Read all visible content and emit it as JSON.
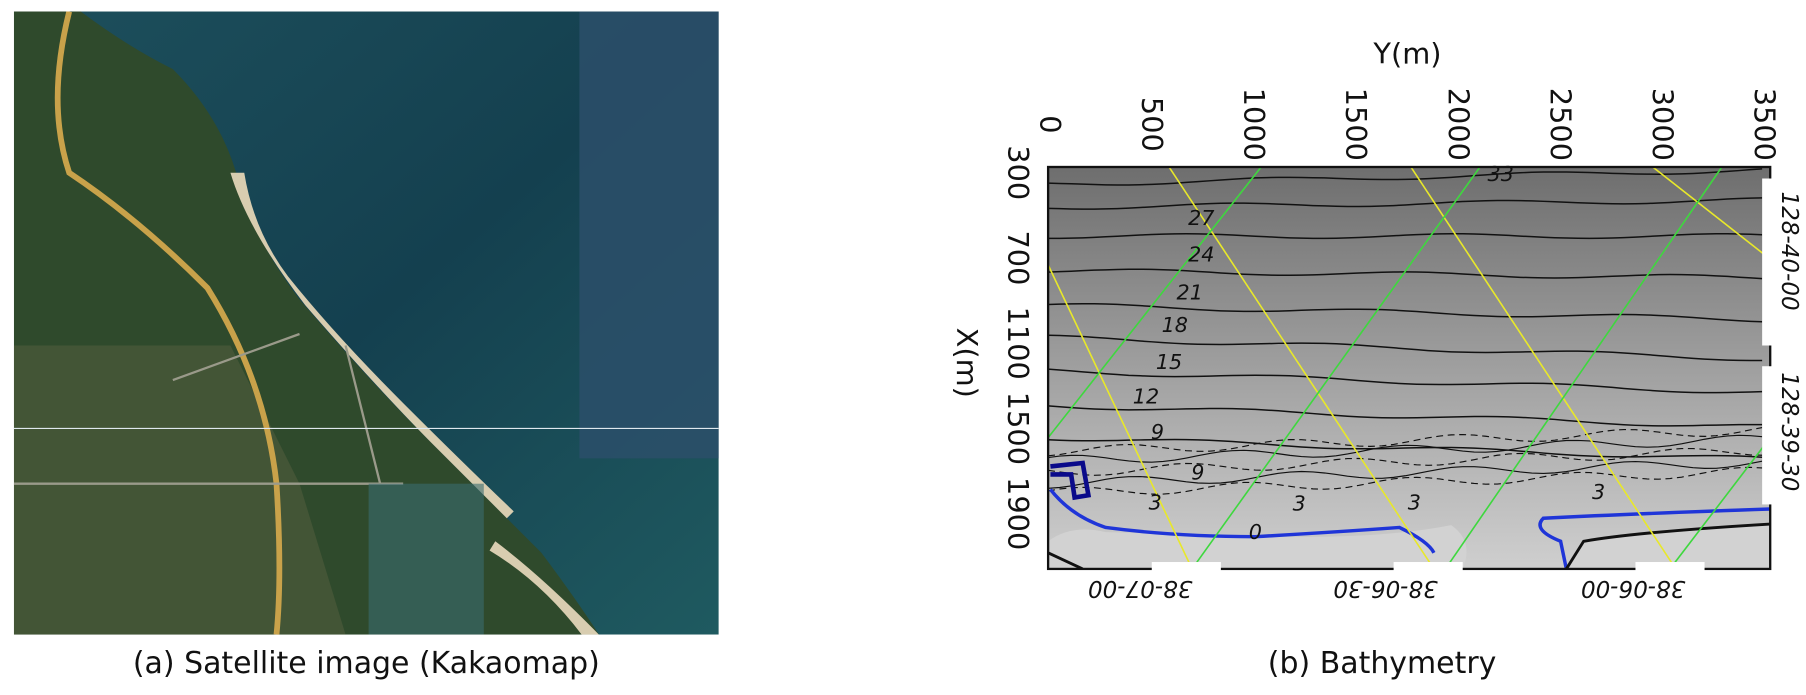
{
  "panels": [
    {
      "caption": "(a) Satellite image (Kakaomap)"
    },
    {
      "caption": "(b) Bathymetry",
      "x_axis_title": "Y(m)",
      "y_axis_title": "X(m)",
      "top_ticks": [
        "0",
        "500",
        "1000",
        "1500",
        "2000",
        "2500",
        "3000",
        "3500"
      ],
      "left_ticks": [
        "300",
        "700",
        "1100",
        "1500",
        "1900"
      ],
      "right_labels": [
        "128-40-00",
        "128-39-30"
      ],
      "bottom_labels": [
        "38-07-00",
        "38-06-30",
        "38-06-00"
      ],
      "contour_labels": [
        "33",
        "27",
        "24",
        "21",
        "18",
        "15",
        "12",
        "9",
        "9",
        "3",
        "3",
        "3",
        "3",
        "0"
      ]
    }
  ]
}
